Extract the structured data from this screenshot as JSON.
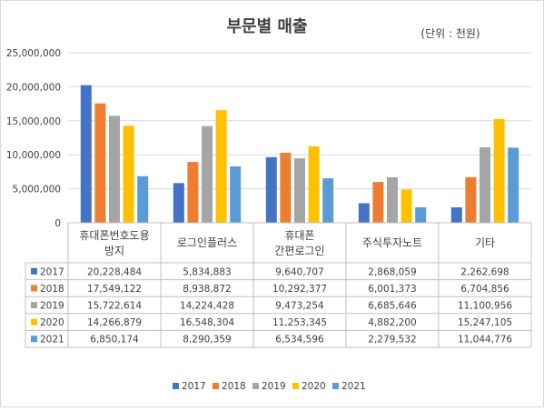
{
  "chart_data": {
    "type": "bar",
    "title": "부문별 매출",
    "unit_label": "(단위 : 천원)",
    "categories": [
      [
        "휴대폰번호도용",
        "방지"
      ],
      [
        "로그인플러스"
      ],
      [
        "휴대폰",
        "간편로그인"
      ],
      [
        "주식투자노트"
      ],
      [
        "기타"
      ]
    ],
    "ylim": [
      0,
      25000000
    ],
    "yticks": [
      "0",
      "5,000,000",
      "10,000,000",
      "15,000,000",
      "20,000,000",
      "25,000,000"
    ],
    "grid": true,
    "legend_position": "bottom",
    "series": [
      {
        "name": "2017",
        "color": "#4472C4",
        "values": [
          20228484,
          5834883,
          9640707,
          2868059,
          2262698
        ],
        "labels": [
          "20,228,484",
          "5,834,883",
          "9,640,707",
          "2,868,059",
          "2,262,698"
        ]
      },
      {
        "name": "2018",
        "color": "#ED7D31",
        "values": [
          17549122,
          8938872,
          10292377,
          6001373,
          6704856
        ],
        "labels": [
          "17,549,122",
          "8,938,872",
          "10,292,377",
          "6,001,373",
          "6,704,856"
        ]
      },
      {
        "name": "2019",
        "color": "#A5A5A5",
        "values": [
          15722614,
          14224428,
          9473254,
          6685646,
          11100956
        ],
        "labels": [
          "15,722,614",
          "14,224,428",
          "9,473,254",
          "6,685,646",
          "11,100,956"
        ]
      },
      {
        "name": "2020",
        "color": "#FFC000",
        "values": [
          14266879,
          16548304,
          11253345,
          4882200,
          15247105
        ],
        "labels": [
          "14,266,879",
          "16,548,304",
          "11,253,345",
          "4,882,200",
          "15,247,105"
        ]
      },
      {
        "name": "2021",
        "color": "#5B9BD5",
        "values": [
          6850174,
          8290359,
          6534596,
          2279532,
          11044776
        ],
        "labels": [
          "6,850,174",
          "8,290,359",
          "6,534,596",
          "2,279,532",
          "11,044,776"
        ]
      }
    ]
  }
}
